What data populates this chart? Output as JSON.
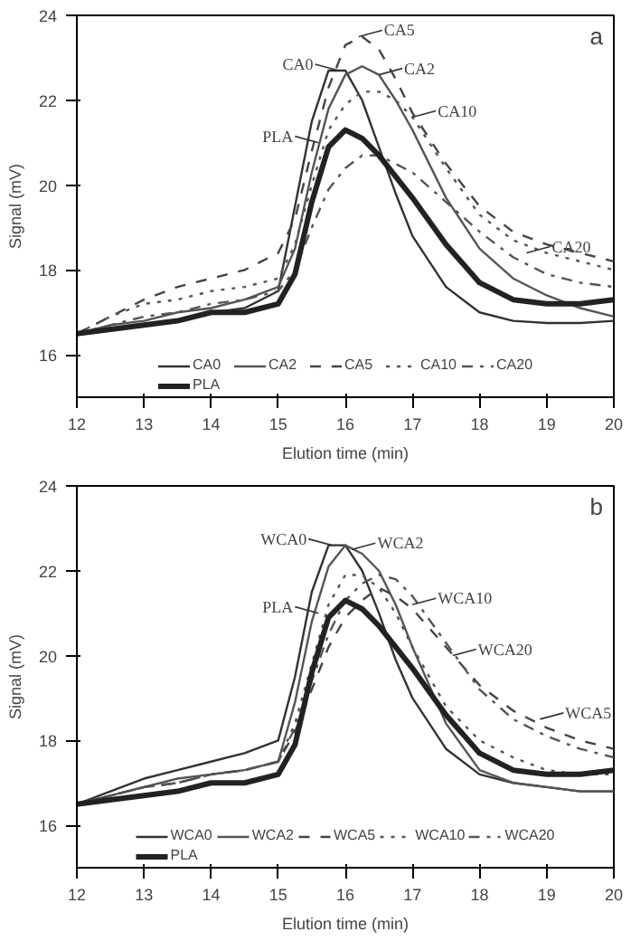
{
  "chart_data": [
    {
      "type": "line",
      "title": null,
      "xlabel": "Elution time (min)",
      "ylabel": "Signal (mV)",
      "xlim": [
        12,
        20
      ],
      "ylim": [
        15,
        24
      ],
      "xticks": [
        12,
        13,
        14,
        15,
        16,
        17,
        18,
        19,
        20
      ],
      "yticks": [
        16,
        18,
        20,
        22,
        24
      ],
      "grid": false,
      "legend": "bottom",
      "marker": "none",
      "x": [
        12,
        12.5,
        13,
        13.5,
        14,
        14.5,
        15,
        15.25,
        15.5,
        15.75,
        16,
        16.25,
        16.5,
        16.75,
        17,
        17.5,
        18,
        18.5,
        19,
        19.5,
        20
      ],
      "series": [
        {
          "name": "CA0",
          "color": "#333333",
          "line_style": "solid",
          "values": [
            16.5,
            16.6,
            16.7,
            16.8,
            17.0,
            17.1,
            17.5,
            19.5,
            21.5,
            22.7,
            22.7,
            22.0,
            20.9,
            19.8,
            18.8,
            17.6,
            17.0,
            16.8,
            16.75,
            16.75,
            16.8
          ]
        },
        {
          "name": "CA2",
          "color": "#555555",
          "line_style": "solid",
          "values": [
            16.5,
            16.7,
            16.8,
            17.0,
            17.1,
            17.3,
            17.6,
            18.5,
            20.3,
            21.8,
            22.6,
            22.8,
            22.6,
            22.0,
            21.3,
            19.7,
            18.5,
            17.8,
            17.4,
            17.1,
            16.9
          ]
        },
        {
          "name": "CA5",
          "color": "#444444",
          "line_style": "dashed",
          "values": [
            16.5,
            16.9,
            17.3,
            17.6,
            17.8,
            18.0,
            18.4,
            19.2,
            20.8,
            22.3,
            23.3,
            23.5,
            23.2,
            22.5,
            21.7,
            20.5,
            19.5,
            18.9,
            18.6,
            18.4,
            18.2
          ]
        },
        {
          "name": "CA10",
          "color": "#555555",
          "line_style": "dotted",
          "values": [
            16.5,
            16.9,
            17.2,
            17.3,
            17.5,
            17.6,
            17.8,
            18.6,
            20.0,
            21.3,
            21.9,
            22.2,
            22.2,
            22.0,
            21.6,
            20.4,
            19.3,
            18.7,
            18.4,
            18.2,
            18.0
          ]
        },
        {
          "name": "CA20",
          "color": "#555555",
          "line_style": "dashdot",
          "values": [
            16.5,
            16.7,
            16.9,
            17.0,
            17.2,
            17.3,
            17.5,
            18.0,
            19.0,
            19.9,
            20.4,
            20.7,
            20.7,
            20.5,
            20.3,
            19.6,
            18.9,
            18.3,
            17.9,
            17.7,
            17.6
          ]
        },
        {
          "name": "PLA",
          "color": "#222222",
          "line_style": "solid",
          "values": [
            16.5,
            16.6,
            16.7,
            16.8,
            17.0,
            17.0,
            17.2,
            17.9,
            19.6,
            20.9,
            21.3,
            21.1,
            20.7,
            20.2,
            19.7,
            18.6,
            17.7,
            17.3,
            17.2,
            17.2,
            17.3
          ]
        }
      ],
      "annotations": [
        "a",
        {
          "text": "CA0",
          "x": 15.9,
          "y": 22.7
        },
        {
          "text": "CA5",
          "x": 16.2,
          "y": 23.5
        },
        {
          "text": "CA2",
          "x": 16.5,
          "y": 22.6
        },
        {
          "text": "CA10",
          "x": 17.0,
          "y": 21.6
        },
        {
          "text": "PLA",
          "x": 15.6,
          "y": 21.0
        },
        {
          "text": "CA20",
          "x": 18.7,
          "y": 18.4
        }
      ]
    },
    {
      "type": "line",
      "title": null,
      "xlabel": "Elution time (min)",
      "ylabel": "Signal (mV)",
      "xlim": [
        12,
        20
      ],
      "ylim": [
        15,
        24
      ],
      "xticks": [
        12,
        13,
        14,
        15,
        16,
        17,
        18,
        19,
        20
      ],
      "yticks": [
        16,
        18,
        20,
        22,
        24
      ],
      "grid": false,
      "legend": "bottom",
      "marker": "none",
      "x": [
        12,
        12.5,
        13,
        13.5,
        14,
        14.5,
        15,
        15.25,
        15.5,
        15.75,
        16,
        16.25,
        16.5,
        16.75,
        17,
        17.5,
        18,
        18.5,
        19,
        19.5,
        20
      ],
      "series": [
        {
          "name": "WCA0",
          "color": "#333333",
          "line_style": "solid",
          "values": [
            16.5,
            16.8,
            17.1,
            17.3,
            17.5,
            17.7,
            18.0,
            19.5,
            21.5,
            22.6,
            22.6,
            22.0,
            21.0,
            19.9,
            19.0,
            17.8,
            17.2,
            17.0,
            16.9,
            16.8,
            16.8
          ]
        },
        {
          "name": "WCA2",
          "color": "#555555",
          "line_style": "solid",
          "values": [
            16.5,
            16.7,
            16.9,
            17.1,
            17.2,
            17.3,
            17.5,
            18.9,
            20.8,
            22.1,
            22.6,
            22.4,
            22.0,
            21.2,
            20.2,
            18.4,
            17.3,
            17.0,
            16.9,
            16.8,
            16.8
          ]
        },
        {
          "name": "WCA5",
          "color": "#444444",
          "line_style": "dashed",
          "values": [
            16.5,
            16.7,
            16.9,
            17.0,
            17.2,
            17.3,
            17.5,
            18.2,
            19.2,
            20.2,
            20.9,
            21.3,
            21.6,
            21.4,
            21.1,
            20.2,
            19.3,
            18.7,
            18.3,
            18.0,
            17.8
          ]
        },
        {
          "name": "WCA10",
          "color": "#555555",
          "line_style": "dotted",
          "values": [
            16.5,
            16.7,
            16.9,
            17.0,
            17.2,
            17.3,
            17.5,
            18.4,
            19.8,
            21.2,
            21.9,
            21.9,
            21.6,
            21.0,
            20.2,
            18.8,
            18.0,
            17.6,
            17.3,
            17.2,
            17.2
          ]
        },
        {
          "name": "WCA20",
          "color": "#555555",
          "line_style": "dashdot",
          "values": [
            16.5,
            16.7,
            16.9,
            17.0,
            17.2,
            17.3,
            17.5,
            18.3,
            19.4,
            20.5,
            21.3,
            21.7,
            21.9,
            21.8,
            21.4,
            20.3,
            19.2,
            18.5,
            18.1,
            17.8,
            17.6
          ]
        },
        {
          "name": "PLA",
          "color": "#222222",
          "line_style": "solid",
          "values": [
            16.5,
            16.6,
            16.7,
            16.8,
            17.0,
            17.0,
            17.2,
            17.9,
            19.6,
            20.9,
            21.3,
            21.1,
            20.7,
            20.2,
            19.7,
            18.6,
            17.7,
            17.3,
            17.2,
            17.2,
            17.3
          ]
        }
      ],
      "annotations": [
        "b",
        {
          "text": "WCA0",
          "x": 15.8,
          "y": 22.6
        },
        {
          "text": "WCA2",
          "x": 16.1,
          "y": 22.5
        },
        {
          "text": "WCA10",
          "x": 17.0,
          "y": 21.2
        },
        {
          "text": "PLA",
          "x": 15.6,
          "y": 21.0
        },
        {
          "text": "WCA20",
          "x": 17.6,
          "y": 20.0
        },
        {
          "text": "WCA5",
          "x": 18.9,
          "y": 18.5
        }
      ]
    }
  ]
}
